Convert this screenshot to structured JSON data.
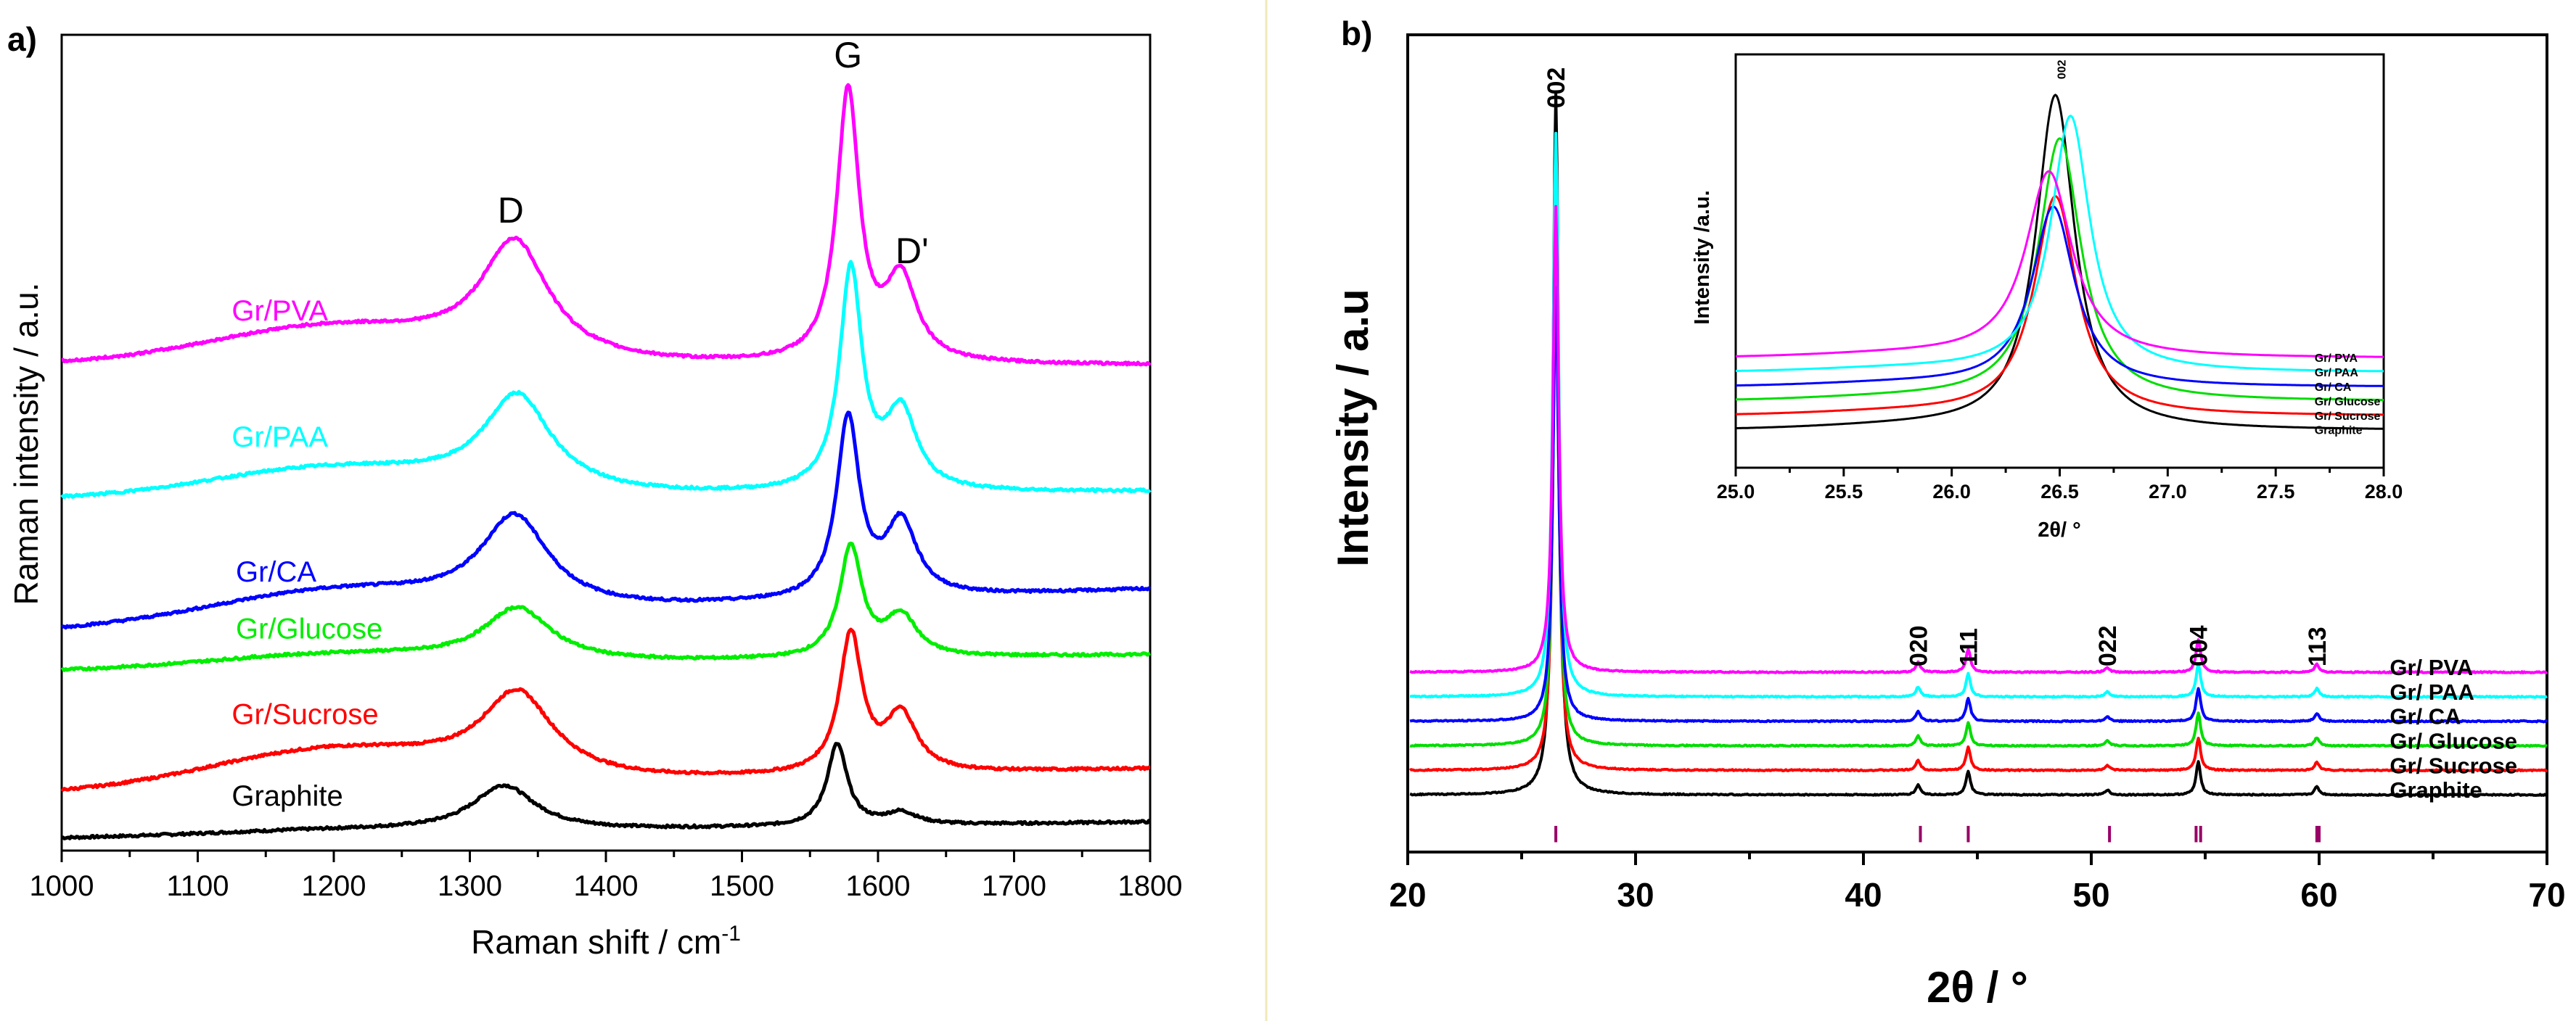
{
  "chart_data": [
    {
      "id": "raman",
      "type": "line",
      "panel_label": "a)",
      "xlabel": "Raman shift / cm",
      "xlabel_superscript": "-1",
      "ylabel": "Raman intensity / a.u.",
      "xlim": [
        1000,
        1800
      ],
      "ylim": [
        0,
        10
      ],
      "x_ticks": [
        "1000",
        "1100",
        "1200",
        "1300",
        "1400",
        "1500",
        "1600",
        "1700",
        "1800"
      ],
      "y_ticks_visible": false,
      "grid": false,
      "peak_labels": [
        {
          "text": "D",
          "x": 1330,
          "y": 7.7
        },
        {
          "text": "G",
          "x": 1578,
          "y": 9.6
        },
        {
          "text": "D'",
          "x": 1625,
          "y": 7.2
        }
      ],
      "series": [
        {
          "name": "Graphite",
          "color": "#000000",
          "baseline": 0.15,
          "baseline_end": 0.35,
          "d_pos": 1325,
          "d_height": 0.55,
          "d_width": 28,
          "g_pos": 1570,
          "g_height": 1.0,
          "g_width": 9,
          "dp_height": 0.15,
          "hump": 0.05,
          "label_x": 1125,
          "label_y": 0.55
        },
        {
          "name": "Gr/Sucrose",
          "color": "#ff0000",
          "baseline": 0.7,
          "baseline_end": 1.0,
          "d_pos": 1335,
          "d_height": 1.0,
          "d_width": 32,
          "g_pos": 1580,
          "g_height": 1.7,
          "g_width": 10,
          "dp_height": 0.7,
          "hump": 0.45,
          "label_x": 1125,
          "label_y": 1.55
        },
        {
          "name": "Gr/Glucose",
          "color": "#00ee00",
          "baseline": 2.2,
          "baseline_end": 2.4,
          "d_pos": 1335,
          "d_height": 0.65,
          "d_width": 30,
          "g_pos": 1580,
          "g_height": 1.35,
          "g_width": 10,
          "dp_height": 0.5,
          "hump": 0.15,
          "label_x": 1128,
          "label_y": 2.6
        },
        {
          "name": "Gr/CA",
          "color": "#0000ff",
          "baseline": 2.7,
          "baseline_end": 3.2,
          "d_pos": 1333,
          "d_height": 1.1,
          "d_width": 30,
          "g_pos": 1578,
          "g_height": 2.2,
          "g_width": 10,
          "dp_height": 0.9,
          "hump": 0.35,
          "label_x": 1128,
          "label_y": 3.3
        },
        {
          "name": "Gr/PAA",
          "color": "#00ffff",
          "baseline": 4.3,
          "baseline_end": 4.4,
          "d_pos": 1335,
          "d_height": 1.15,
          "d_width": 30,
          "g_pos": 1580,
          "g_height": 2.7,
          "g_width": 10,
          "dp_height": 0.95,
          "hump": 0.35,
          "label_x": 1125,
          "label_y": 4.95
        },
        {
          "name": "Gr/PVA",
          "color": "#ff00ff",
          "baseline": 5.95,
          "baseline_end": 5.95,
          "d_pos": 1333,
          "d_height": 1.4,
          "d_width": 30,
          "g_pos": 1578,
          "g_height": 3.3,
          "g_width": 10,
          "dp_height": 1.0,
          "hump": 0.45,
          "label_x": 1125,
          "label_y": 6.5
        }
      ]
    },
    {
      "id": "xrd",
      "type": "line",
      "panel_label": "b)",
      "xlabel": "2θ / °",
      "ylabel": "Intensity / a.u",
      "xlim": [
        20,
        70
      ],
      "ylim": [
        0,
        10
      ],
      "x_ticks": [
        "20",
        "30",
        "40",
        "50",
        "60",
        "70"
      ],
      "y_ticks_visible": false,
      "grid": false,
      "main_peak": {
        "pos": 26.5,
        "width": 0.15
      },
      "minor_peaks": [
        {
          "pos": 42.4,
          "height": 0.12
        },
        {
          "pos": 44.6,
          "height": 0.28
        },
        {
          "pos": 50.7,
          "height": 0.06
        },
        {
          "pos": 54.7,
          "height": 0.4
        },
        {
          "pos": 59.9,
          "height": 0.1
        }
      ],
      "reference_labels": [
        {
          "text": "002",
          "x": 26.5,
          "y": 9.1
        },
        {
          "text": "020",
          "x": 42.4,
          "y": 2.27
        },
        {
          "text": "111",
          "x": 44.6,
          "y": 2.27
        },
        {
          "text": "022",
          "x": 50.7,
          "y": 2.27
        },
        {
          "text": "004",
          "x": 54.7,
          "y": 2.27
        },
        {
          "text": "113",
          "x": 59.9,
          "y": 2.27
        }
      ],
      "reference_ticks": [
        26.5,
        42.5,
        44.6,
        50.8,
        54.6,
        54.8,
        59.9,
        60.0
      ],
      "reference_tick_color": "#990066",
      "series": [
        {
          "name": "Graphite",
          "color": "#000000",
          "baseline": 0.7,
          "peak_top": 9.3
        },
        {
          "name": "Gr/ Sucrose",
          "color": "#ff0000",
          "baseline": 1.0,
          "peak_top": 7.4
        },
        {
          "name": "Gr/ Glucose",
          "color": "#00dd00",
          "baseline": 1.3,
          "peak_top": 7.1
        },
        {
          "name": "Gr/ CA",
          "color": "#0000ff",
          "baseline": 1.6,
          "peak_top": 6.9
        },
        {
          "name": "Gr/ PAA",
          "color": "#00ffff",
          "baseline": 1.9,
          "peak_top": 8.8
        },
        {
          "name": "Gr/ PVA",
          "color": "#ff00ff",
          "baseline": 2.2,
          "peak_top": 7.9
        }
      ]
    },
    {
      "id": "xrd-inset",
      "type": "line",
      "xlabel": "2θ/ °",
      "ylabel": "Intensity /a.u.",
      "xlim": [
        25.0,
        28.0
      ],
      "ylim": [
        0,
        10
      ],
      "x_ticks": [
        "25.0",
        "25.5",
        "26.0",
        "26.5",
        "27.0",
        "27.5",
        "28.0"
      ],
      "peak_label": {
        "text": "002",
        "x": 26.5,
        "y": 9.4
      },
      "series": [
        {
          "name": "Graphite",
          "color": "#000000",
          "baseline": 0.9,
          "pos": 26.48,
          "top": 9.0,
          "width": 0.11
        },
        {
          "name": "Gr/ Sucrose",
          "color": "#ff0000",
          "baseline": 1.25,
          "pos": 26.48,
          "top": 6.55,
          "width": 0.12
        },
        {
          "name": "Gr/ Glucose",
          "color": "#00dd00",
          "baseline": 1.6,
          "pos": 26.5,
          "top": 7.95,
          "width": 0.12
        },
        {
          "name": "Gr/ CA",
          "color": "#0000ff",
          "baseline": 1.95,
          "pos": 26.47,
          "top": 6.3,
          "width": 0.12
        },
        {
          "name": "Gr/ PAA",
          "color": "#00ffff",
          "baseline": 2.3,
          "pos": 26.55,
          "top": 8.5,
          "width": 0.11
        },
        {
          "name": "Gr/ PVA",
          "color": "#ff00ff",
          "baseline": 2.65,
          "pos": 26.45,
          "top": 7.15,
          "width": 0.13
        }
      ],
      "legend_order": [
        "Gr/ PVA",
        "Gr/ PAA",
        "Gr/ CA",
        "Gr/ Glucose",
        "Gr/ Sucrose",
        "Graphite"
      ]
    }
  ]
}
